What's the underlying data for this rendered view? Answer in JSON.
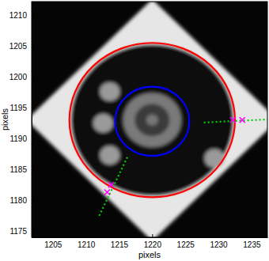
{
  "chart_data": {
    "type": "image",
    "xlabel": "pixels",
    "ylabel": "pixels",
    "xlim": [
      1201.8,
      1237.4
    ],
    "ylim": [
      1174.0,
      1212.2
    ],
    "xticks": [
      1205,
      1210,
      1215,
      1220,
      1225,
      1230,
      1235
    ],
    "yticks": [
      1175,
      1180,
      1185,
      1190,
      1195,
      1200,
      1205,
      1210
    ],
    "image": {
      "diamond": {
        "x": [
          1220,
          1239,
          1220,
          1201
        ],
        "y": [
          1212.6,
          1193,
          1173.4,
          1193
        ]
      },
      "disk": {
        "x": 1220,
        "y": 1193,
        "r": 12.3
      },
      "ring": {
        "x": 1220,
        "y": 1193,
        "r": 4.4
      },
      "center": {
        "x": 1220,
        "y": 1193,
        "r": 0.9
      },
      "spots": [
        {
          "x": 1213.6,
          "y": 1197.6,
          "r": 1.5
        },
        {
          "x": 1212.6,
          "y": 1192.5,
          "r": 1.5
        },
        {
          "x": 1213.6,
          "y": 1187.3,
          "r": 1.5
        },
        {
          "x": 1229.4,
          "y": 1186.8,
          "r": 1.5
        }
      ]
    },
    "circles": [
      {
        "x": 1220,
        "y": 1193,
        "r": 12.5,
        "color": "#ff0000"
      },
      {
        "x": 1220,
        "y": 1192.8,
        "r": 5.6,
        "color": "#0000ff"
      }
    ],
    "lines": [
      {
        "x": [
          1227.8,
          1237.4
        ],
        "y": [
          1192.6,
          1193.1
        ],
        "color": "#00cc00",
        "line_style": "dotted"
      },
      {
        "x": [
          1212.0,
          1216.4
        ],
        "y": [
          1177.5,
          1187.3
        ],
        "color": "#00cc00",
        "line_style": "dotted"
      }
    ],
    "markers": {
      "x": [
        1232.2,
        1233.6,
        1213.2,
        1213.8
      ],
      "y": [
        1193,
        1193,
        1181.3,
        1182.5
      ],
      "color": "#ff00ff",
      "marker": "x"
    }
  }
}
